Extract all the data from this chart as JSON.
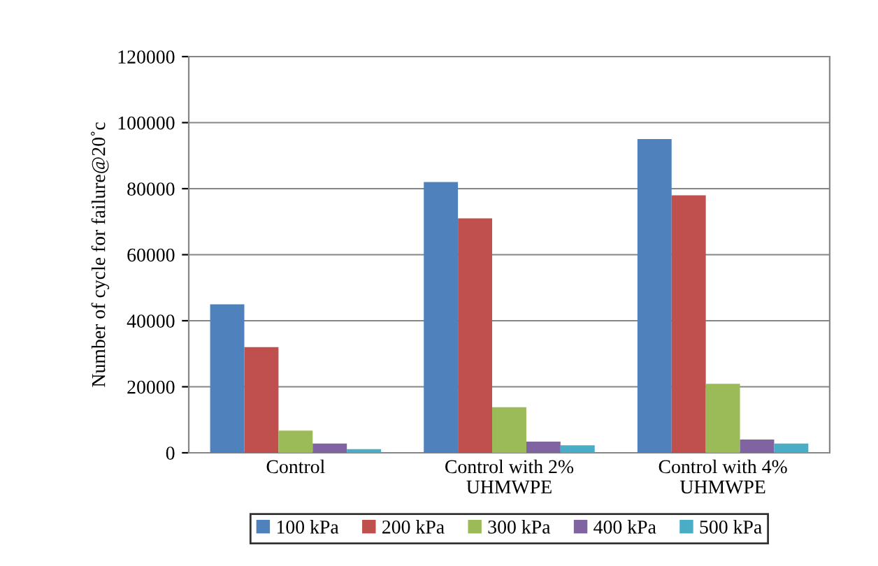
{
  "chart_data": {
    "type": "bar",
    "ylabel": "Number of cycle for failure@20˚c",
    "categories": [
      "Control",
      "Control with 2%\nUHMWPE",
      "Control with 4%\nUHMWPE"
    ],
    "series": [
      {
        "name": "100 kPa",
        "color": "#4f81bd",
        "values": [
          45000,
          82000,
          95000
        ]
      },
      {
        "name": "200 kPa",
        "color": "#c0504d",
        "values": [
          32000,
          71000,
          78000
        ]
      },
      {
        "name": "300 kPa",
        "color": "#9bbb59",
        "values": [
          6700,
          13800,
          20900
        ]
      },
      {
        "name": "400 kPa",
        "color": "#8064a2",
        "values": [
          2800,
          3400,
          4000
        ]
      },
      {
        "name": "500 kPa",
        "color": "#4bacc6",
        "values": [
          1100,
          2300,
          2800
        ]
      }
    ],
    "ylim": [
      0,
      120000
    ],
    "yticks": [
      0,
      20000,
      40000,
      60000,
      80000,
      100000,
      120000
    ],
    "grid": "y",
    "legend": "bottom"
  }
}
